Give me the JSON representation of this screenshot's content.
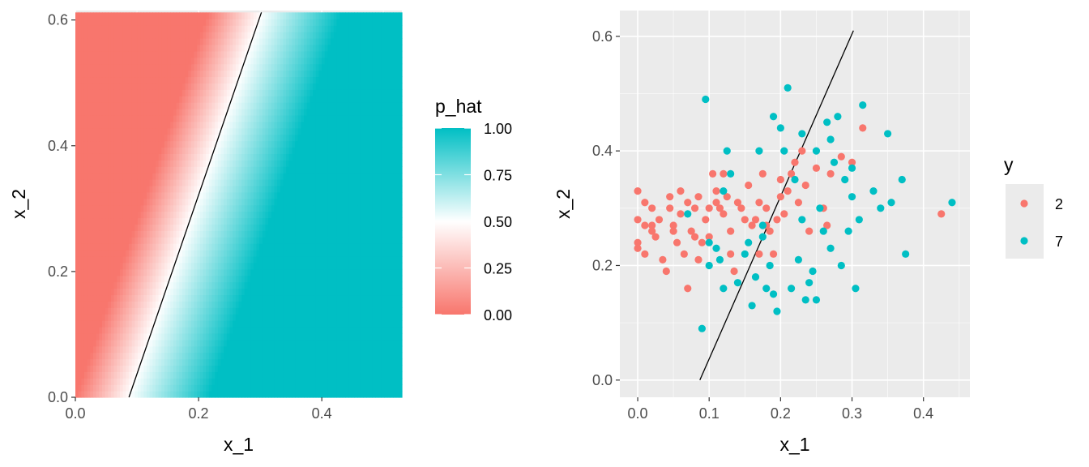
{
  "colors": {
    "panel_bg": "#ebebeb",
    "grid_major": "#ffffff",
    "low": "#f8766d",
    "mid": "#ffffff",
    "high": "#00bfc4",
    "boundary": "#000000"
  },
  "chart_data": [
    {
      "type": "heatmap",
      "xlabel": "x_1",
      "ylabel": "x_2",
      "xlim": [
        0,
        0.53
      ],
      "ylim": [
        0,
        0.615
      ],
      "xticks": [
        {
          "value": 0.0,
          "label": "0.0"
        },
        {
          "value": 0.2,
          "label": "0.2"
        },
        {
          "value": 0.4,
          "label": "0.4"
        }
      ],
      "yticks": [
        {
          "value": 0.0,
          "label": "0.0"
        },
        {
          "value": 0.2,
          "label": "0.2"
        },
        {
          "value": 0.4,
          "label": "0.4"
        },
        {
          "value": 0.6,
          "label": "0.6"
        }
      ],
      "fill_variable": "p_hat",
      "legend": {
        "title": "p_hat",
        "range": [
          0,
          1
        ],
        "breaks": [
          {
            "value": 1.0,
            "label": "1.00"
          },
          {
            "value": 0.75,
            "label": "0.75"
          },
          {
            "value": 0.5,
            "label": "0.50"
          },
          {
            "value": 0.25,
            "label": "0.25"
          },
          {
            "value": 0.0,
            "label": "0.00"
          }
        ]
      },
      "boundary": {
        "p": 0.5,
        "x1_at_x2_min": 0.087,
        "x1_at_x2_max": 0.302
      },
      "transition_x1": {
        "p0_offset": -0.087,
        "p1_offset": 0.13
      }
    },
    {
      "type": "scatter",
      "xlabel": "x_1",
      "ylabel": "x_2",
      "xlim": [
        -0.025,
        0.465
      ],
      "ylim": [
        -0.03,
        0.645
      ],
      "xticks": [
        {
          "value": 0.0,
          "label": "0.0"
        },
        {
          "value": 0.1,
          "label": "0.1"
        },
        {
          "value": 0.2,
          "label": "0.2"
        },
        {
          "value": 0.3,
          "label": "0.3"
        },
        {
          "value": 0.4,
          "label": "0.4"
        }
      ],
      "yticks": [
        {
          "value": 0.0,
          "label": "0.0"
        },
        {
          "value": 0.2,
          "label": "0.2"
        },
        {
          "value": 0.4,
          "label": "0.4"
        },
        {
          "value": 0.6,
          "label": "0.6"
        }
      ],
      "boundary_line": {
        "x": [
          0.087,
          0.302
        ],
        "y": [
          0.0,
          0.61
        ]
      },
      "legend": {
        "title": "y",
        "items": [
          {
            "label": "2"
          },
          {
            "label": "7"
          }
        ]
      },
      "series": [
        {
          "name": "2",
          "color": "#f8766d",
          "points": [
            [
              0.0,
              0.33
            ],
            [
              0.0,
              0.28
            ],
            [
              0.0,
              0.24
            ],
            [
              0.0,
              0.23
            ],
            [
              0.01,
              0.31
            ],
            [
              0.01,
              0.27
            ],
            [
              0.01,
              0.22
            ],
            [
              0.02,
              0.27
            ],
            [
              0.02,
              0.26
            ],
            [
              0.02,
              0.3
            ],
            [
              0.025,
              0.25
            ],
            [
              0.03,
              0.28
            ],
            [
              0.035,
              0.21
            ],
            [
              0.04,
              0.19
            ],
            [
              0.045,
              0.32
            ],
            [
              0.045,
              0.3
            ],
            [
              0.05,
              0.27
            ],
            [
              0.05,
              0.26
            ],
            [
              0.055,
              0.24
            ],
            [
              0.06,
              0.33
            ],
            [
              0.06,
              0.29
            ],
            [
              0.065,
              0.22
            ],
            [
              0.07,
              0.16
            ],
            [
              0.07,
              0.31
            ],
            [
              0.075,
              0.26
            ],
            [
              0.08,
              0.3
            ],
            [
              0.08,
              0.25
            ],
            [
              0.085,
              0.32
            ],
            [
              0.085,
              0.21
            ],
            [
              0.09,
              0.24
            ],
            [
              0.095,
              0.28
            ],
            [
              0.1,
              0.25
            ],
            [
              0.1,
              0.3
            ],
            [
              0.105,
              0.36
            ],
            [
              0.11,
              0.31
            ],
            [
              0.11,
              0.33
            ],
            [
              0.115,
              0.3
            ],
            [
              0.12,
              0.29
            ],
            [
              0.12,
              0.36
            ],
            [
              0.125,
              0.32
            ],
            [
              0.13,
              0.26
            ],
            [
              0.13,
              0.22
            ],
            [
              0.135,
              0.19
            ],
            [
              0.14,
              0.31
            ],
            [
              0.145,
              0.3
            ],
            [
              0.15,
              0.28
            ],
            [
              0.155,
              0.34
            ],
            [
              0.16,
              0.27
            ],
            [
              0.165,
              0.28
            ],
            [
              0.17,
              0.31
            ],
            [
              0.17,
              0.22
            ],
            [
              0.175,
              0.36
            ],
            [
              0.18,
              0.27
            ],
            [
              0.18,
              0.3
            ],
            [
              0.185,
              0.26
            ],
            [
              0.19,
              0.22
            ],
            [
              0.195,
              0.28
            ],
            [
              0.2,
              0.32
            ],
            [
              0.2,
              0.35
            ],
            [
              0.205,
              0.29
            ],
            [
              0.21,
              0.33
            ],
            [
              0.215,
              0.36
            ],
            [
              0.22,
              0.38
            ],
            [
              0.225,
              0.31
            ],
            [
              0.23,
              0.4
            ],
            [
              0.235,
              0.34
            ],
            [
              0.24,
              0.26
            ],
            [
              0.25,
              0.37
            ],
            [
              0.26,
              0.3
            ],
            [
              0.265,
              0.27
            ],
            [
              0.27,
              0.36
            ],
            [
              0.285,
              0.39
            ],
            [
              0.3,
              0.38
            ],
            [
              0.315,
              0.44
            ],
            [
              0.425,
              0.29
            ]
          ]
        },
        {
          "name": "7",
          "color": "#00bfc4",
          "points": [
            [
              0.07,
              0.29
            ],
            [
              0.09,
              0.09
            ],
            [
              0.095,
              0.49
            ],
            [
              0.1,
              0.24
            ],
            [
              0.1,
              0.2
            ],
            [
              0.11,
              0.23
            ],
            [
              0.115,
              0.21
            ],
            [
              0.12,
              0.16
            ],
            [
              0.12,
              0.33
            ],
            [
              0.125,
              0.4
            ],
            [
              0.13,
              0.36
            ],
            [
              0.14,
              0.17
            ],
            [
              0.15,
              0.22
            ],
            [
              0.155,
              0.24
            ],
            [
              0.16,
              0.13
            ],
            [
              0.165,
              0.18
            ],
            [
              0.17,
              0.4
            ],
            [
              0.175,
              0.25
            ],
            [
              0.175,
              0.27
            ],
            [
              0.18,
              0.16
            ],
            [
              0.185,
              0.2
            ],
            [
              0.19,
              0.15
            ],
            [
              0.19,
              0.46
            ],
            [
              0.195,
              0.12
            ],
            [
              0.2,
              0.44
            ],
            [
              0.205,
              0.4
            ],
            [
              0.21,
              0.51
            ],
            [
              0.215,
              0.16
            ],
            [
              0.22,
              0.35
            ],
            [
              0.225,
              0.21
            ],
            [
              0.23,
              0.43
            ],
            [
              0.23,
              0.28
            ],
            [
              0.235,
              0.14
            ],
            [
              0.24,
              0.17
            ],
            [
              0.245,
              0.19
            ],
            [
              0.25,
              0.14
            ],
            [
              0.25,
              0.4
            ],
            [
              0.255,
              0.3
            ],
            [
              0.26,
              0.26
            ],
            [
              0.265,
              0.45
            ],
            [
              0.27,
              0.23
            ],
            [
              0.27,
              0.42
            ],
            [
              0.275,
              0.38
            ],
            [
              0.28,
              0.46
            ],
            [
              0.285,
              0.2
            ],
            [
              0.29,
              0.35
            ],
            [
              0.295,
              0.26
            ],
            [
              0.3,
              0.32
            ],
            [
              0.3,
              0.37
            ],
            [
              0.305,
              0.16
            ],
            [
              0.31,
              0.28
            ],
            [
              0.315,
              0.48
            ],
            [
              0.33,
              0.33
            ],
            [
              0.34,
              0.3
            ],
            [
              0.35,
              0.43
            ],
            [
              0.355,
              0.31
            ],
            [
              0.37,
              0.35
            ],
            [
              0.375,
              0.22
            ],
            [
              0.44,
              0.31
            ]
          ]
        }
      ]
    }
  ]
}
